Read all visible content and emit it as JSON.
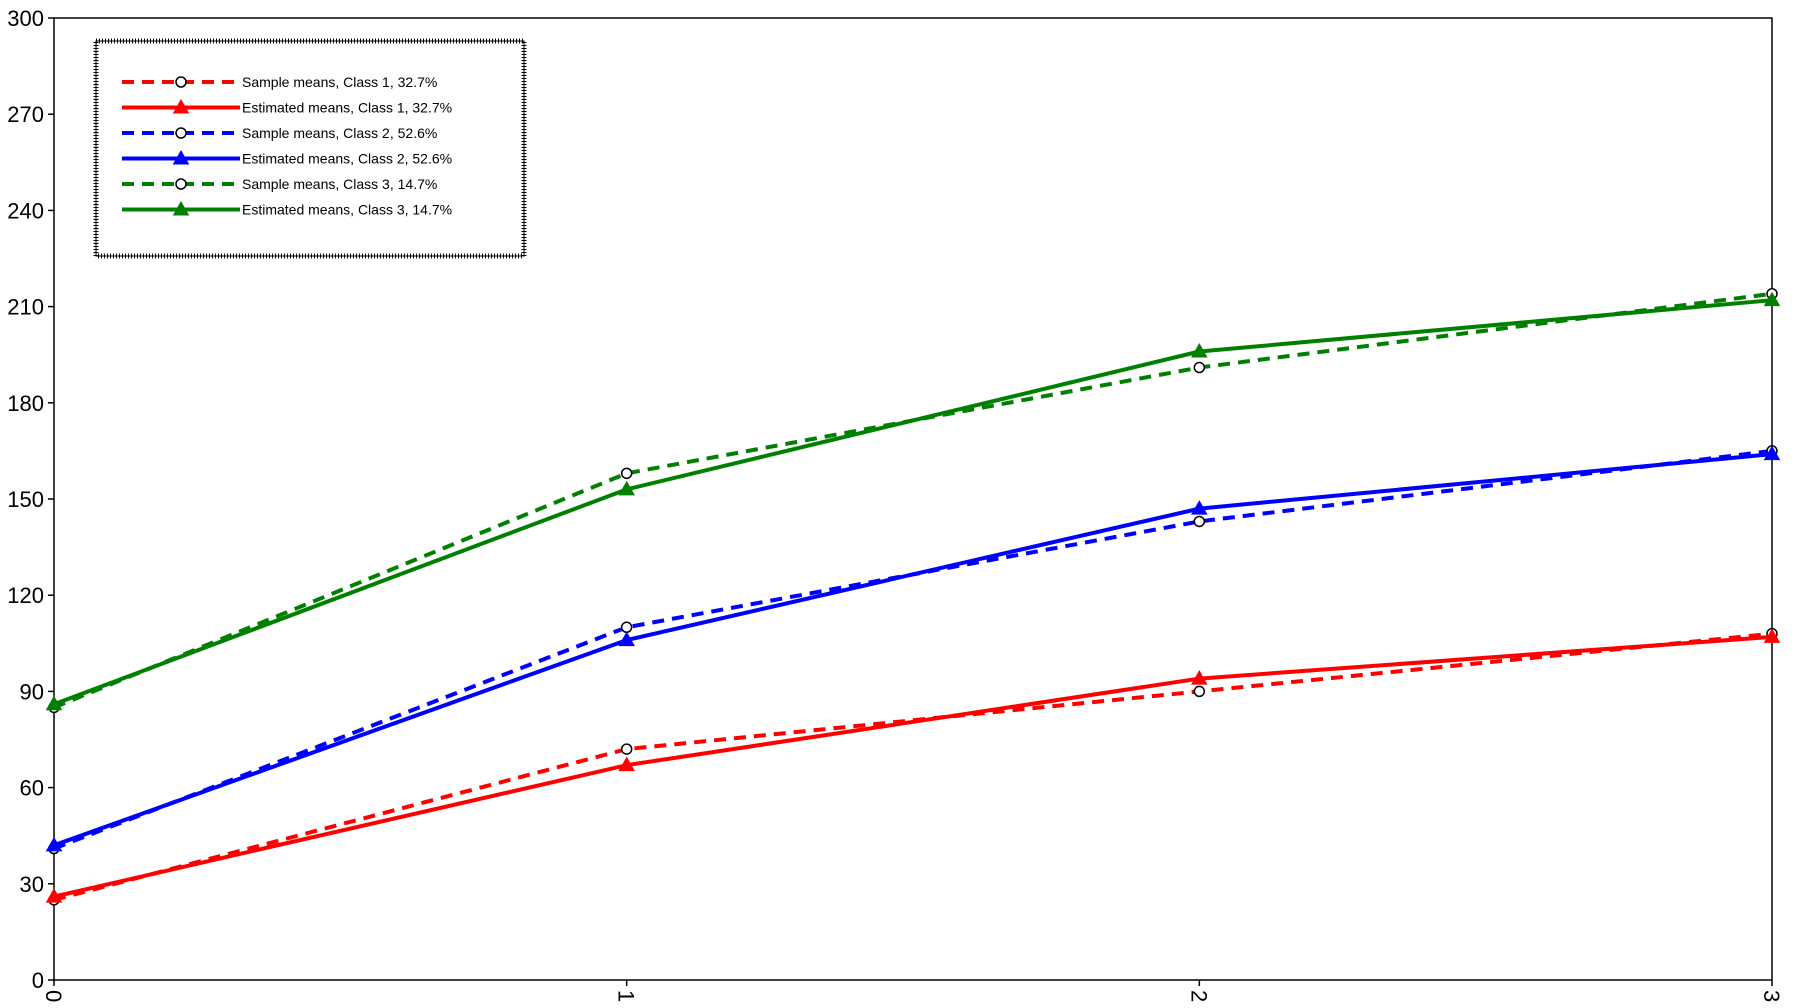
{
  "chart_data": {
    "type": "line",
    "title": "",
    "xlabel": "",
    "ylabel": "",
    "x": [
      0,
      1,
      2,
      3
    ],
    "x_tick_labels": [
      "0",
      "1",
      "2",
      "3"
    ],
    "ylim": [
      0,
      300
    ],
    "y_ticks": [
      0,
      30,
      60,
      90,
      120,
      150,
      180,
      210,
      240,
      270,
      300
    ],
    "y_tick_labels": [
      "0",
      "30",
      "60",
      "90",
      "120",
      "150",
      "180",
      "210",
      "240",
      "270",
      "300"
    ],
    "grid": false,
    "legend_position": "top-left",
    "series": [
      {
        "name": "Sample means, Class 1, 32.7%",
        "values": [
          25,
          72,
          90,
          108
        ],
        "color": "#ff0000",
        "style": "dashed",
        "marker": "circle"
      },
      {
        "name": "Estimated means, Class 1, 32.7%",
        "values": [
          26,
          67,
          94,
          107
        ],
        "color": "#ff0000",
        "style": "solid",
        "marker": "triangle"
      },
      {
        "name": "Sample means, Class 2, 52.6%",
        "values": [
          41,
          110,
          143,
          165
        ],
        "color": "#0000ff",
        "style": "dashed",
        "marker": "circle"
      },
      {
        "name": "Estimated means, Class 2, 52.6%",
        "values": [
          42,
          106,
          147,
          164
        ],
        "color": "#0000ff",
        "style": "solid",
        "marker": "triangle"
      },
      {
        "name": "Sample means, Class 3, 14.7%",
        "values": [
          85,
          158,
          191,
          214
        ],
        "color": "#008000",
        "style": "dashed",
        "marker": "circle"
      },
      {
        "name": "Estimated means, Class 3, 14.7%",
        "values": [
          86,
          153,
          196,
          212
        ],
        "color": "#008000",
        "style": "solid",
        "marker": "triangle"
      }
    ]
  }
}
